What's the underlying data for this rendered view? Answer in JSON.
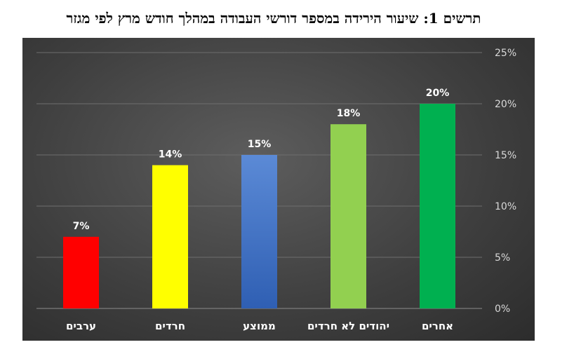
{
  "chart_data": {
    "type": "bar",
    "title": "תרשים 1: שיעור הירידה במספר דורשי העבודה במהלך חודש מרץ לפי מגזר",
    "categories": [
      "ערבים",
      "חרדים",
      "ממוצע",
      "יהודים לא חרדים",
      "אחרים"
    ],
    "values": [
      7,
      14,
      15,
      18,
      20
    ],
    "data_labels": [
      "7%",
      "14%",
      "15%",
      "18%",
      "20%"
    ],
    "colors": [
      "#ff0000",
      "#ffff00",
      "#4472c4",
      "#92d050",
      "#00b050"
    ],
    "yticks": [
      "0%",
      "5%",
      "10%",
      "15%",
      "20%",
      "25%"
    ],
    "ylim": [
      0,
      25
    ],
    "y_axis_position": "right",
    "grid": true
  }
}
